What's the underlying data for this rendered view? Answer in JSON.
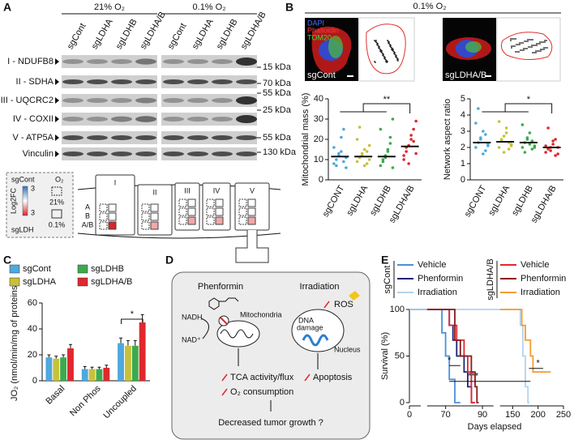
{
  "panel_labels": [
    "A",
    "B",
    "C",
    "D",
    "E"
  ],
  "panel_a": {
    "conditions": [
      "21% O₂",
      "0.1% O₂"
    ],
    "lanes": [
      "sgCont",
      "sgLDHA",
      "sgLDHB",
      "sgLDHA/B",
      "sgCont",
      "sgLDHA",
      "sgLDHB",
      "sgLDHA/B"
    ],
    "rows": [
      "I - NDUFB8",
      "II - SDHA",
      "III - UQCRC2",
      "IV - COXII",
      "V - ATP5A",
      "Vinculin"
    ],
    "markers": [
      "15 kDa",
      "70 kDa",
      "55 kDa",
      "25 kDa",
      "55 kDa",
      "130 kDa"
    ],
    "legend": {
      "sgcont": "sgCont",
      "sgldh": "sgLDH",
      "o2": "O₂",
      "scale_title": "Log2FC",
      "scale_top": "3",
      "scale_bottom": "3",
      "o2_levels": [
        "21%",
        "0.1%"
      ]
    },
    "complexes": [
      "I",
      "II",
      "III",
      "IV",
      "V"
    ],
    "row_labels": [
      "A",
      "B",
      "A/B"
    ]
  },
  "panel_b": {
    "condition": "0.1% O₂",
    "stains": [
      "DAPI",
      "Phalloidin",
      "TOM20"
    ],
    "images": [
      "sgCont",
      "sgLDHA/B"
    ]
  },
  "panel_d": {
    "phenformin": "Phenformin",
    "irradiation": "Irradiation",
    "nadh": "NADH",
    "nad": "NAD⁺",
    "mitochondria": "Mitochondria",
    "ros": "ROS",
    "dna_damage": [
      "DNA",
      "damage"
    ],
    "nucleus": "Nucleus",
    "tca": "TCA activity/flux",
    "o2": "O₂ consumption",
    "apoptosis": "Apoptosis",
    "outcome": "Decreased tumor growth ?"
  },
  "chart_data": [
    {
      "type": "strip",
      "ylabel": "Mitochondrial mass (%)",
      "categories": [
        "sgCONT",
        "sgLDHA",
        "sgLDHB",
        "sgLDHA/B"
      ],
      "colors": [
        "#4ea8de",
        "#c7c13a",
        "#3daa4a",
        "#e0282e"
      ],
      "points": [
        [
          8,
          10,
          12,
          14,
          9,
          11,
          16,
          7,
          13,
          21,
          25,
          6
        ],
        [
          9,
          11,
          13,
          15,
          8,
          10,
          20,
          26,
          12,
          7,
          14,
          17
        ],
        [
          7,
          10,
          12,
          15,
          18,
          30,
          25,
          9,
          11,
          14,
          21,
          6
        ],
        [
          10,
          14,
          17,
          20,
          25,
          29,
          12,
          16,
          8,
          22,
          19,
          13
        ]
      ],
      "means": [
        11.5,
        11.5,
        11.5,
        16.5
      ],
      "ylim": [
        0,
        40
      ],
      "yticks": [
        0,
        10,
        20,
        30,
        40
      ],
      "annotations": [
        "**"
      ]
    },
    {
      "type": "strip",
      "ylabel": "Network aspect ratio",
      "categories": [
        "sgCONT",
        "sgLDHA",
        "sgLDHB",
        "sgLDHA/B"
      ],
      "colors": [
        "#4ea8de",
        "#c7c13a",
        "#3daa4a",
        "#e0282e"
      ],
      "points": [
        [
          2.0,
          2.3,
          2.6,
          3.0,
          1.8,
          2.1,
          3.5,
          4.4,
          2.5,
          1.6,
          2.8,
          2.2
        ],
        [
          2.0,
          2.4,
          2.7,
          3.2,
          1.9,
          2.2,
          3.6,
          2.5,
          1.7,
          2.9,
          2.3,
          2.1
        ],
        [
          2.0,
          2.3,
          2.5,
          2.9,
          1.9,
          2.1,
          3.4,
          1.7,
          2.6,
          2.2,
          2.4,
          2.0
        ],
        [
          1.7,
          1.9,
          2.0,
          2.2,
          2.5,
          1.6,
          2.1,
          3.2,
          1.8,
          2.4,
          1.5,
          2.0
        ]
      ],
      "means": [
        2.3,
        2.35,
        2.3,
        2.0
      ],
      "ylim": [
        0,
        5
      ],
      "yticks": [
        0,
        1,
        2,
        3,
        4,
        5
      ],
      "annotations": [
        "*"
      ]
    },
    {
      "type": "bar",
      "ylabel": "JO₂ (nmol/min/mg of proteins)",
      "categories": [
        "Basal",
        "Non Phos",
        "Uncoupled"
      ],
      "series": [
        {
          "name": "sgCont",
          "color": "#4ea8de",
          "values": [
            18,
            9,
            29
          ],
          "errors": [
            2,
            2,
            4
          ]
        },
        {
          "name": "sgLDHA",
          "color": "#c7c13a",
          "values": [
            17,
            9,
            27
          ],
          "errors": [
            2,
            1.5,
            4
          ]
        },
        {
          "name": "sgLDHB",
          "color": "#3daa4a",
          "values": [
            18,
            9,
            27
          ],
          "errors": [
            2,
            1.5,
            4
          ]
        },
        {
          "name": "sgLDHA/B",
          "color": "#e0282e",
          "values": [
            25,
            10,
            45
          ],
          "errors": [
            3,
            2,
            6
          ]
        }
      ],
      "ylim": [
        0,
        60
      ],
      "yticks": [
        0,
        20,
        40,
        60
      ],
      "annotations": [
        "*"
      ]
    },
    {
      "type": "survival",
      "xlabel": "Days elapsed",
      "ylabel": "Survival (%)",
      "groups": [
        "sgCont",
        "sgLDHA/B"
      ],
      "series": [
        {
          "name": "Vehicle",
          "group": 0,
          "color": "#4a90d9",
          "x": [
            0,
            68,
            68,
            70,
            70,
            72,
            72,
            75,
            75,
            78
          ],
          "values": [
            100,
            100,
            75,
            75,
            50,
            50,
            25,
            25,
            0,
            0
          ]
        },
        {
          "name": "Phenformin",
          "group": 0,
          "color": "#1a237e",
          "x": [
            0,
            72,
            72,
            74,
            74,
            76,
            76,
            80,
            80,
            82,
            82,
            84,
            84,
            85
          ],
          "values": [
            100,
            100,
            83,
            83,
            67,
            67,
            50,
            50,
            33,
            33,
            17,
            17,
            0,
            0
          ]
        },
        {
          "name": "Irradiation",
          "group": 0,
          "color": "#b3d4ee",
          "x": [
            0,
            165,
            165,
            170,
            170,
            175,
            175,
            180,
            180,
            183
          ],
          "values": [
            100,
            100,
            83,
            83,
            50,
            50,
            17,
            17,
            0,
            0
          ]
        },
        {
          "name": "Vehicle",
          "group": 1,
          "color": "#e0282e",
          "x": [
            60,
            72,
            72,
            76,
            76,
            80,
            80,
            82,
            82,
            84,
            84,
            86
          ],
          "values": [
            100,
            100,
            83,
            83,
            67,
            67,
            50,
            50,
            33,
            33,
            0,
            0
          ]
        },
        {
          "name": "Phenformin",
          "group": 1,
          "color": "#8b1a1a",
          "x": [
            60,
            75,
            75,
            78,
            78,
            84,
            84,
            86,
            86,
            87,
            87,
            88
          ],
          "values": [
            100,
            100,
            67,
            67,
            50,
            50,
            33,
            33,
            17,
            17,
            0,
            0
          ]
        },
        {
          "name": "Irradiation",
          "group": 1,
          "color": "#f39c33",
          "x": [
            125,
            168,
            168,
            175,
            175,
            185,
            185,
            190,
            190,
            225
          ],
          "values": [
            100,
            100,
            83,
            83,
            67,
            67,
            50,
            50,
            33,
            33
          ]
        }
      ],
      "xlim": [
        0,
        250
      ],
      "xbreaks": [
        [
          5,
          60
        ],
        [
          96,
          125
        ]
      ],
      "xticks": [
        0,
        70,
        90,
        150,
        200,
        250
      ],
      "ylim": [
        0,
        100
      ],
      "yticks": [
        0,
        50,
        100
      ],
      "annotations": [
        "*",
        "***",
        "*"
      ]
    }
  ]
}
